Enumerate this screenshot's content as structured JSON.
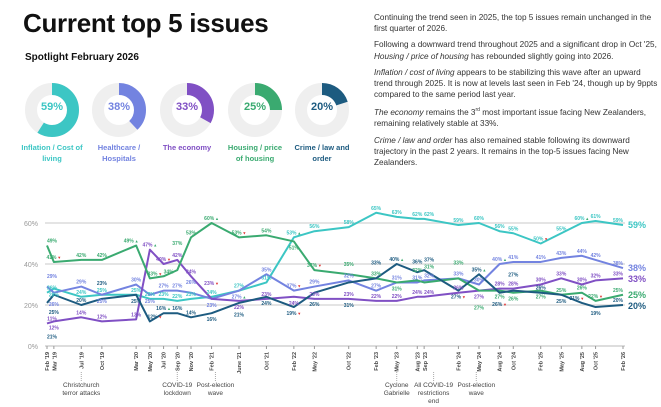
{
  "title": "Current top 5 issues",
  "subtitle": "Spotlight February 2026",
  "donuts": [
    {
      "label": "Inflation / Cost of living",
      "value": 59,
      "display": "59%",
      "color": "#3cc6c4"
    },
    {
      "label": "Healthcare / Hospitals",
      "value": 38,
      "display": "38%",
      "color": "#7383e0"
    },
    {
      "label": "The economy",
      "value": 33,
      "display": "33%",
      "color": "#8050c4"
    },
    {
      "label": "Housing / price of housing",
      "value": 25,
      "display": "25%",
      "color": "#3aaa70"
    },
    {
      "label": "Crime / law and order",
      "value": 20,
      "display": "20%",
      "color": "#1d5b80"
    }
  ],
  "commentary": {
    "p1": "Continuing the trend seen in 2025, the top 5 issues remain unchanged in the first quarter of 2026.",
    "p2_a": "Following a downward trend throughout 2025 and a significant drop in Oct '25, ",
    "p2_i": "Housing / price of housing",
    "p2_b": " has rebounded slightly going into 2026.",
    "p3_i": "Inflation / cost of living",
    "p3_b": " appears to be stabilizing this wave after an upward trend through 2025. It is now at levels last seen in Feb '24, though up by 9ppts compared to the same period last year.",
    "p4_i": "The economy",
    "p4_b": " remains the 3",
    "p4_sup": "rd",
    "p4_c": " most important issue facing New Zealanders, remaining relatively stable at 33%.",
    "p5_i": "Crime / law and order",
    "p5_b": " has also remained stable following its downward trajectory in the past 2 years. It remains in the top-5 issues facing New Zealanders."
  },
  "chart_data": {
    "type": "line",
    "ylim": [
      0,
      60
    ],
    "yticks": [
      "0%",
      "20%",
      "40%",
      "60%"
    ],
    "ytick_values": [
      0,
      20,
      40,
      60
    ],
    "grid": true,
    "categories": [
      "Feb '19",
      "Mar '19",
      "Jul '19",
      "Oct '19",
      "Mar '20",
      "May '20",
      "Jul '20",
      "Sep '20",
      "Nov '20",
      "Feb '21",
      "June '21",
      "Oct '21",
      "Feb '22",
      "May '22",
      "Oct '22",
      "Feb '23",
      "May '23",
      "Aug '23",
      "Sep '23",
      "Feb '24",
      "May '24",
      "Aug '24",
      "Oct '24",
      "Feb '25",
      "May '25",
      "Aug '25",
      "Oct '25",
      "Feb '26"
    ],
    "series": [
      {
        "key": "inflation",
        "color": "#3cc6c4",
        "end_label": "59%",
        "values": [
          26,
          28,
          24,
          25,
          25,
          23,
          23,
          22,
          23,
          24,
          27,
          31,
          53,
          56,
          58,
          65,
          63,
          62,
          62,
          59,
          60,
          56,
          55,
          50,
          55,
          60,
          61,
          59
        ],
        "flags": {
          "12": "up",
          "23": "down",
          "25": "up"
        }
      },
      {
        "key": "healthcare",
        "color": "#7383e0",
        "end_label": "38%",
        "values": [
          29,
          26,
          29,
          25,
          30,
          25,
          27,
          27,
          26,
          23,
          27,
          35,
          27,
          29,
          32,
          27,
          31,
          31,
          32,
          33,
          30,
          40,
          41,
          41,
          43,
          44,
          42,
          38
        ],
        "flags": {
          "10": "up",
          "12": "down",
          "21": "up"
        }
      },
      {
        "key": "economy",
        "color": "#8050c4",
        "end_label": "33%",
        "values": [
          11,
          12,
          14,
          12,
          13,
          47,
          40,
          42,
          34,
          23,
          22,
          23,
          24,
          23,
          23,
          22,
          22,
          24,
          24,
          26,
          27,
          28,
          28,
          30,
          33,
          30,
          32,
          33
        ],
        "flags": {
          "5": "up",
          "6": "down",
          "9": "down"
        }
      },
      {
        "key": "housing",
        "color": "#3aaa70",
        "end_label": "25%",
        "values": [
          49,
          41,
          42,
          42,
          49,
          33,
          34,
          37,
          53,
          60,
          53,
          54,
          51,
          37,
          35,
          33,
          31,
          32,
          31,
          33,
          27,
          27,
          26,
          27,
          25,
          26,
          22,
          25
        ],
        "flags": {
          "1": "down",
          "4": "up",
          "5": "down",
          "9": "up",
          "10": "down",
          "13": "down",
          "26": "down"
        }
      },
      {
        "key": "crime",
        "color": "#1d5b80",
        "end_label": "20%",
        "values": [
          21,
          25,
          20,
          23,
          25,
          12,
          16,
          16,
          14,
          16,
          21,
          24,
          19,
          26,
          31,
          33,
          40,
          36,
          37,
          27,
          35,
          26,
          27,
          26,
          25,
          21,
          19,
          20
        ],
        "flags": {
          "5": "down",
          "6": "up",
          "12": "down",
          "16": "up",
          "19": "down",
          "20": "up",
          "21": "down",
          "25": "down"
        }
      }
    ],
    "annotations": [
      {
        "category": "Jul '19",
        "text": [
          "Christchurch",
          "terror attacks"
        ]
      },
      {
        "category": "Sep '20",
        "text": [
          "COVID-19",
          "lockdown"
        ]
      },
      {
        "category": "Nov '20",
        "text": [
          "Post-election",
          "wave"
        ]
      },
      {
        "category": "May '23",
        "text": [
          "Cyclone",
          "Gabrielle"
        ]
      },
      {
        "category": "Oct '23",
        "text": [
          "All COVID-19",
          "restrictions",
          "end"
        ]
      },
      {
        "category": "Apr '24",
        "text": [
          "Post-election",
          "wave"
        ]
      }
    ],
    "flag_colors": {
      "up": "#3aaa70",
      "down": "#e03030"
    }
  }
}
